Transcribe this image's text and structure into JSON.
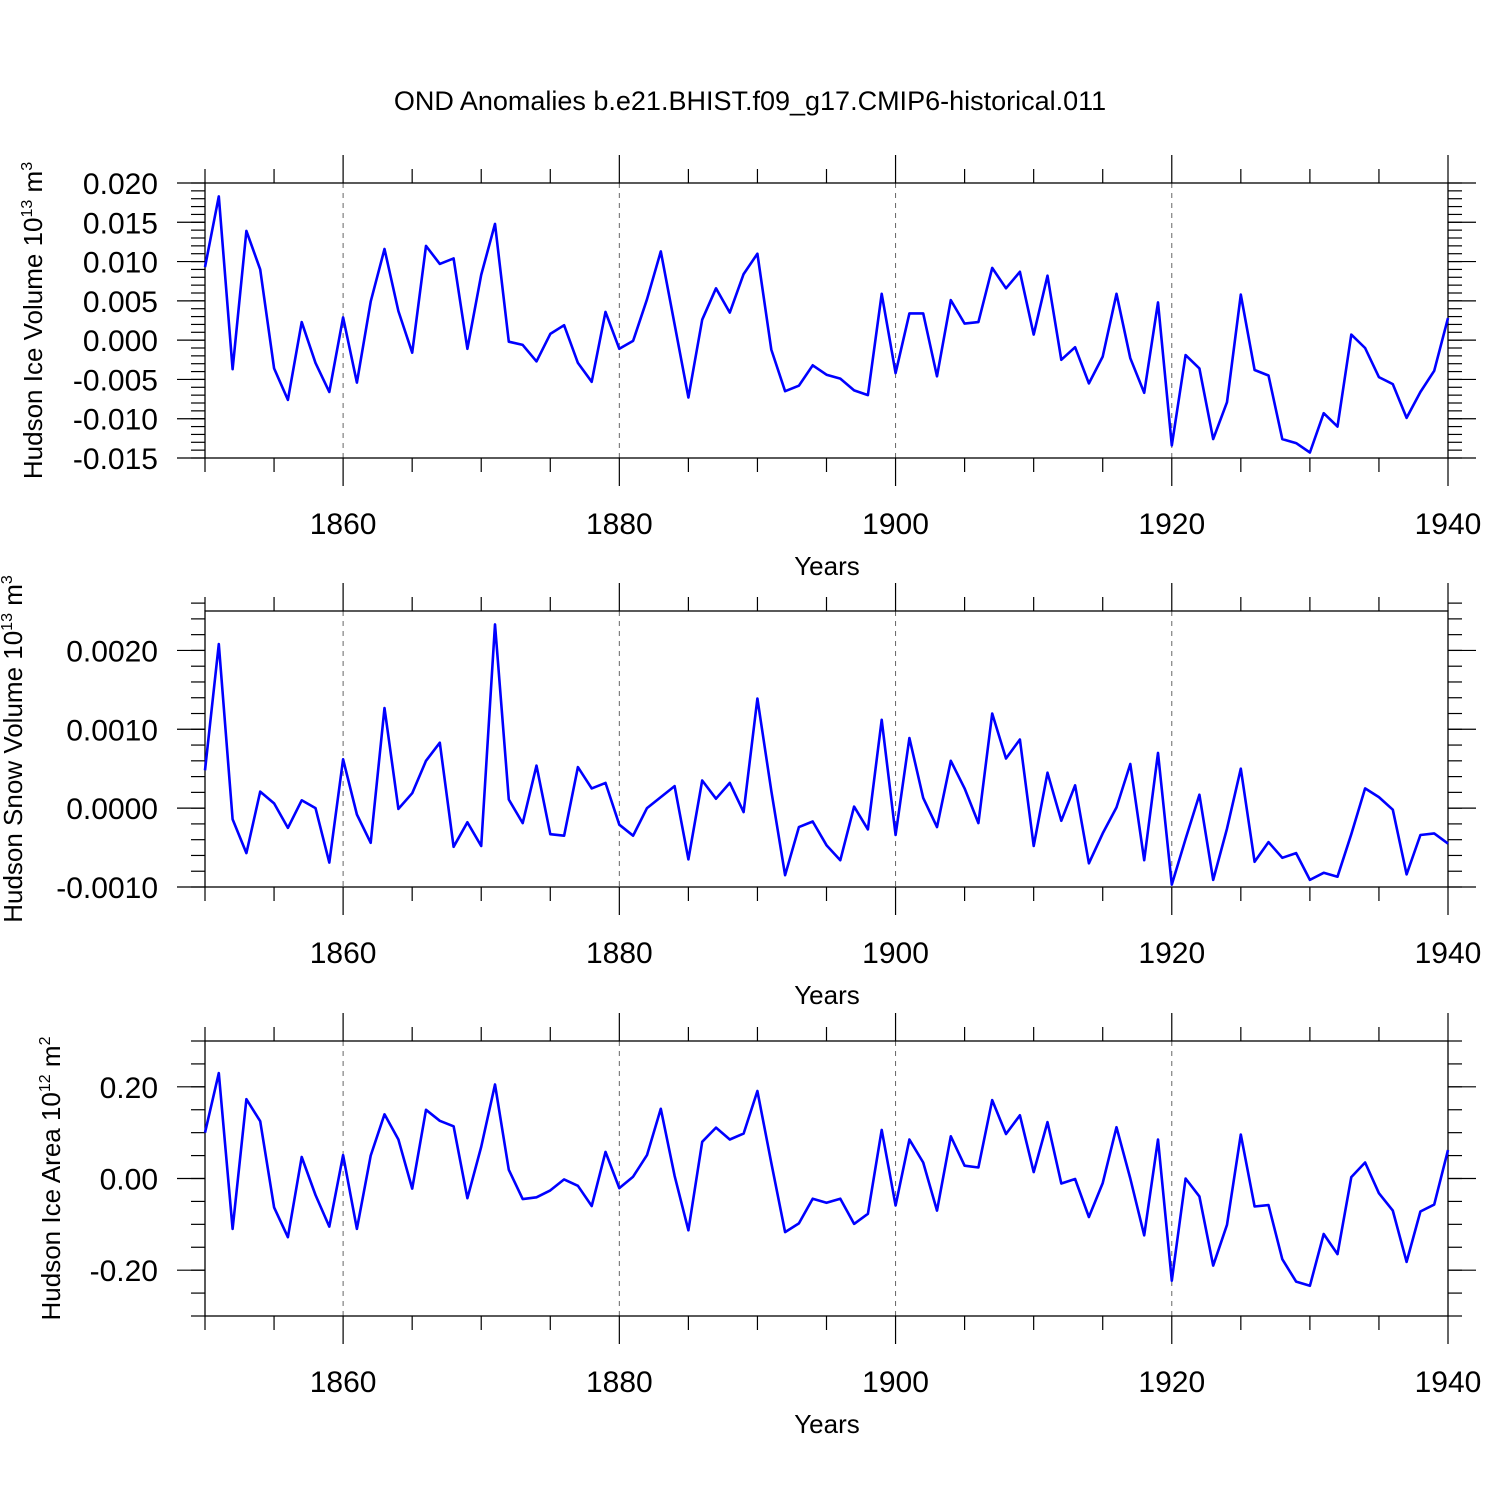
{
  "chart_data": {
    "type": "line",
    "title": "OND Anomalies b.e21.BHIST.f09_g17.CMIP6-historical.011",
    "line_color": "#0000ff",
    "x_range": [
      1850,
      1940
    ],
    "x_major_ticks": [
      1860,
      1880,
      1900,
      1920,
      1940
    ],
    "x_tick_labels": [
      "1860",
      "1880",
      "1900",
      "1920",
      "1940"
    ],
    "x_minor_step": 5,
    "xlabel": "Years",
    "x": [
      1850,
      1851,
      1852,
      1853,
      1854,
      1855,
      1856,
      1857,
      1858,
      1859,
      1860,
      1861,
      1862,
      1863,
      1864,
      1865,
      1866,
      1867,
      1868,
      1869,
      1870,
      1871,
      1872,
      1873,
      1874,
      1875,
      1876,
      1877,
      1878,
      1879,
      1880,
      1881,
      1882,
      1883,
      1884,
      1885,
      1886,
      1887,
      1888,
      1889,
      1890,
      1891,
      1892,
      1893,
      1894,
      1895,
      1896,
      1897,
      1898,
      1899,
      1900,
      1901,
      1902,
      1903,
      1904,
      1905,
      1906,
      1907,
      1908,
      1909,
      1910,
      1911,
      1912,
      1913,
      1914,
      1915,
      1916,
      1917,
      1918,
      1919,
      1920,
      1921,
      1922,
      1923,
      1924,
      1925,
      1926,
      1927,
      1928,
      1929,
      1930,
      1931,
      1932,
      1933,
      1934,
      1935,
      1936,
      1937,
      1938,
      1939,
      1940
    ],
    "panels": [
      {
        "name": "ice-volume",
        "ylabel_main": "Hudson Ice Volume 10",
        "ylabel_exp": "13",
        "ylabel_unit": " m",
        "ylabel_unit_exp": "3",
        "ylim": [
          -0.015,
          0.02
        ],
        "y_major_ticks": [
          -0.015,
          -0.01,
          -0.005,
          0.0,
          0.005,
          0.01,
          0.015,
          0.02
        ],
        "y_tick_labels": [
          "-0.015",
          "-0.010",
          "-0.005",
          "0.000",
          "0.005",
          "0.010",
          "0.015",
          "0.020"
        ],
        "y_minor_step": 0.001,
        "values": [
          0.0093,
          0.0183,
          -0.0037,
          0.0139,
          0.009,
          -0.0036,
          -0.0076,
          0.0023,
          -0.0029,
          -0.0066,
          0.0029,
          -0.0054,
          0.0049,
          0.0116,
          0.0037,
          -0.0016,
          0.012,
          0.0097,
          0.0104,
          -0.0011,
          0.0083,
          0.0148,
          -0.0002,
          -0.0006,
          -0.0027,
          0.0008,
          0.0019,
          -0.0029,
          -0.0053,
          0.0036,
          -0.0011,
          -0.0001,
          0.0052,
          0.0113,
          0.002,
          -0.0073,
          0.0026,
          0.0066,
          0.0035,
          0.0084,
          0.011,
          -0.0012,
          -0.0065,
          -0.0058,
          -0.0032,
          -0.0044,
          -0.0049,
          -0.0064,
          -0.007,
          0.0059,
          -0.0042,
          0.0034,
          0.0034,
          -0.0046,
          0.0051,
          0.0021,
          0.0023,
          0.0092,
          0.0066,
          0.0087,
          0.0007,
          0.0082,
          -0.0025,
          -0.0009,
          -0.0055,
          -0.0021,
          0.0059,
          -0.0023,
          -0.0067,
          0.0048,
          -0.0134,
          -0.0019,
          -0.0036,
          -0.0126,
          -0.0079,
          0.0058,
          -0.0038,
          -0.0045,
          -0.0126,
          -0.0131,
          -0.0143,
          -0.0093,
          -0.011,
          0.0007,
          -0.001,
          -0.0047,
          -0.0056,
          -0.0099,
          -0.0066,
          -0.0039,
          0.0028
        ]
      },
      {
        "name": "snow-volume",
        "ylabel_main": "Hudson Snow Volume 10",
        "ylabel_exp": "13",
        "ylabel_unit": " m",
        "ylabel_unit_exp": "3",
        "ylim": [
          -0.001,
          0.0025
        ],
        "y_major_ticks": [
          -0.001,
          0.0,
          0.001,
          0.002
        ],
        "y_tick_labels": [
          "-0.0010",
          "0.0000",
          "0.0010",
          "0.0020"
        ],
        "y_minor_step": 0.0002,
        "values": [
          0.00048,
          0.00208,
          -0.00014,
          -0.00057,
          0.00021,
          6e-05,
          -0.00025,
          0.0001,
          0.0,
          -0.00069,
          0.00062,
          -8e-05,
          -0.00044,
          0.00127,
          -1e-05,
          0.00019,
          0.0006,
          0.00083,
          -0.00049,
          -0.00018,
          -0.00048,
          0.00233,
          0.00011,
          -0.00019,
          0.00054,
          -0.00033,
          -0.00035,
          0.00052,
          0.00025,
          0.00032,
          -0.00021,
          -0.00035,
          0.0,
          0.00014,
          0.00028,
          -0.00065,
          0.00035,
          0.00012,
          0.00032,
          -5e-05,
          0.00139,
          0.00022,
          -0.00085,
          -0.00024,
          -0.00017,
          -0.00047,
          -0.00066,
          2e-05,
          -0.00027,
          0.00112,
          -0.00034,
          0.00089,
          0.00013,
          -0.00024,
          0.0006,
          0.00025,
          -0.00019,
          0.0012,
          0.00063,
          0.00087,
          -0.00048,
          0.00045,
          -0.00016,
          0.00029,
          -0.0007,
          -0.00032,
          1e-05,
          0.00056,
          -0.00066,
          0.0007,
          -0.00097,
          -0.00039,
          0.00017,
          -0.00091,
          -0.00026,
          0.0005,
          -0.00068,
          -0.00043,
          -0.00063,
          -0.00057,
          -0.00091,
          -0.00082,
          -0.00087,
          -0.00033,
          0.00025,
          0.00014,
          -2e-05,
          -0.00084,
          -0.00034,
          -0.00032,
          -0.00045
        ]
      },
      {
        "name": "ice-area",
        "ylabel_main": "Hudson Ice Area 10",
        "ylabel_exp": "12",
        "ylabel_unit": " m",
        "ylabel_unit_exp": "2",
        "ylim": [
          -0.3,
          0.3
        ],
        "y_major_ticks": [
          -0.2,
          0.0,
          0.2
        ],
        "y_tick_labels": [
          "-0.20",
          "0.00",
          "0.20"
        ],
        "y_minor_step": 0.05,
        "values": [
          0.1,
          0.23,
          -0.11,
          0.173,
          0.125,
          -0.063,
          -0.128,
          0.047,
          -0.036,
          -0.105,
          0.051,
          -0.11,
          0.05,
          0.14,
          0.085,
          -0.022,
          0.15,
          0.126,
          0.114,
          -0.043,
          0.069,
          0.205,
          0.019,
          -0.045,
          -0.041,
          -0.026,
          -0.002,
          -0.016,
          -0.06,
          0.058,
          -0.021,
          0.004,
          0.051,
          0.152,
          0.006,
          -0.113,
          0.08,
          0.111,
          0.085,
          0.098,
          0.191,
          0.034,
          -0.117,
          -0.098,
          -0.044,
          -0.053,
          -0.044,
          -0.099,
          -0.077,
          0.106,
          -0.059,
          0.085,
          0.035,
          -0.07,
          0.092,
          0.028,
          0.024,
          0.171,
          0.097,
          0.138,
          0.014,
          0.123,
          -0.011,
          -0.001,
          -0.084,
          -0.01,
          0.112,
          0.0,
          -0.124,
          0.085,
          -0.223,
          0.0,
          -0.039,
          -0.19,
          -0.101,
          0.096,
          -0.061,
          -0.058,
          -0.176,
          -0.225,
          -0.234,
          -0.121,
          -0.165,
          0.003,
          0.035,
          -0.032,
          -0.07,
          -0.182,
          -0.072,
          -0.057,
          0.062
        ]
      }
    ]
  }
}
